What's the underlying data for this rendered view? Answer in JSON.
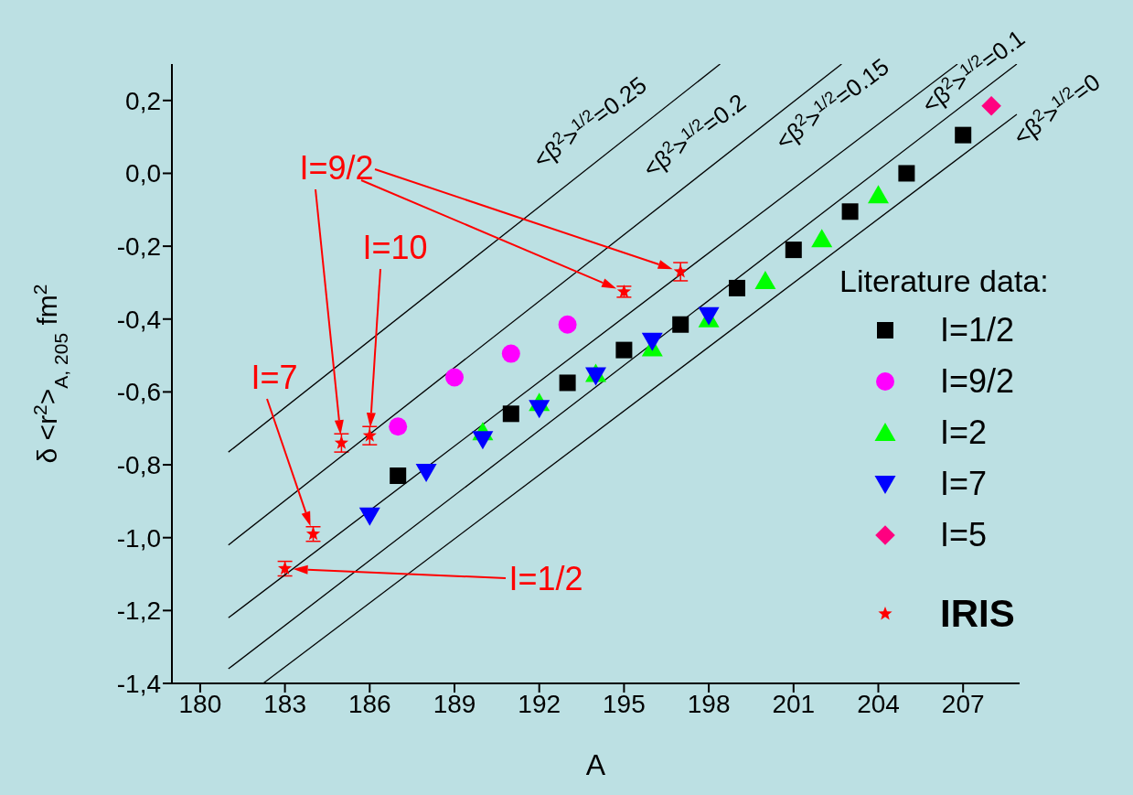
{
  "chart_data": {
    "type": "scatter",
    "xlabel": "A",
    "ylabel": "δ <r$^{2}$>$_{A, 205}$  fm$^{2}$",
    "legend_title": "Literature data:",
    "legend": "right",
    "xlim": [
      179,
      209
    ],
    "xticks": [
      180,
      183,
      186,
      189,
      192,
      195,
      198,
      201,
      204,
      207
    ],
    "ylim": [
      -1.4,
      0.3
    ],
    "yticks": [
      {
        "value": -1.4,
        "label": "-1,4"
      },
      {
        "value": -1.2,
        "label": "-1,2"
      },
      {
        "value": -1.0,
        "label": "-1,0"
      },
      {
        "value": -0.8,
        "label": "-0,8"
      },
      {
        "value": -0.6,
        "label": "-0,6"
      },
      {
        "value": -0.4,
        "label": "-0,4"
      },
      {
        "value": -0.2,
        "label": "-0,2"
      },
      {
        "value": 0.0,
        "label": "0,0"
      },
      {
        "value": 0.2,
        "label": "0,2"
      }
    ],
    "series": [
      {
        "type": "line",
        "color": "#000000",
        "marker": "none",
        "x": [
          182.23,
          208.9
        ],
        "values": [
          -1.4,
          0.162
        ]
      },
      {
        "type": "line",
        "color": "#000000",
        "marker": "none",
        "x": [
          181,
          208.9
        ],
        "values": [
          -1.36,
          0.3
        ]
      },
      {
        "type": "line",
        "color": "#000000",
        "marker": "none",
        "x": [
          181,
          206.8
        ],
        "values": [
          -1.22,
          0.3
        ]
      },
      {
        "type": "line",
        "color": "#000000",
        "marker": "none",
        "x": [
          181,
          202.7
        ],
        "values": [
          -1.02,
          0.3
        ]
      },
      {
        "type": "line",
        "color": "#000000",
        "marker": "none",
        "x": [
          181,
          198.4
        ],
        "values": [
          -0.765,
          0.3
        ]
      },
      {
        "name": "I=1/2",
        "color": "#000000",
        "marker": "square",
        "x": [
          187,
          191,
          193,
          195,
          197,
          199,
          201,
          203,
          205,
          207
        ],
        "values": [
          -0.83,
          -0.66,
          -0.575,
          -0.485,
          -0.415,
          -0.315,
          -0.21,
          -0.105,
          0.0,
          0.105
        ]
      },
      {
        "name": "I=9/2",
        "color": "#ff00ff",
        "marker": "circle",
        "x": [
          187,
          189,
          191,
          193
        ],
        "values": [
          -0.695,
          -0.56,
          -0.495,
          -0.415
        ]
      },
      {
        "name": "I=2",
        "color": "#00ff00",
        "marker": "triangle",
        "x": [
          190,
          192,
          194,
          196,
          198,
          200,
          202,
          204
        ],
        "values": [
          -0.71,
          -0.63,
          -0.55,
          -0.48,
          -0.4,
          -0.295,
          -0.18,
          -0.06
        ]
      },
      {
        "name": "I=7",
        "color": "#0000ff",
        "marker": "triangle-down",
        "x": [
          186,
          188,
          190,
          192,
          194,
          196,
          198
        ],
        "values": [
          -0.94,
          -0.82,
          -0.73,
          -0.645,
          -0.555,
          -0.46,
          -0.39
        ]
      },
      {
        "name": "I=5",
        "color": "#ff0080",
        "marker": "diamond",
        "x": [
          208
        ],
        "values": [
          0.185
        ]
      },
      {
        "name": "IRIS",
        "color": "#ff0000",
        "marker": "star",
        "x": [
          183,
          184,
          185,
          186,
          195,
          197
        ],
        "values": [
          -1.085,
          -0.99,
          -0.74,
          -0.72,
          -0.325,
          -0.27
        ],
        "errors": [
          0.02,
          0.02,
          0.025,
          0.025,
          0.015,
          0.025
        ]
      }
    ],
    "annotations": [
      "<β$^{2}$>$^{1/2}$=0.25",
      "<β$^{2}$>$^{1/2}$=0.2",
      "<β$^{2}$>$^{1/2}$=0.15",
      "<β$^{2}$>$^{1/2}$=0.1",
      "<β$^{2}$>$^{1/2}$=0",
      "I=9/2",
      "I=10",
      "I=7",
      "I=1/2"
    ]
  }
}
